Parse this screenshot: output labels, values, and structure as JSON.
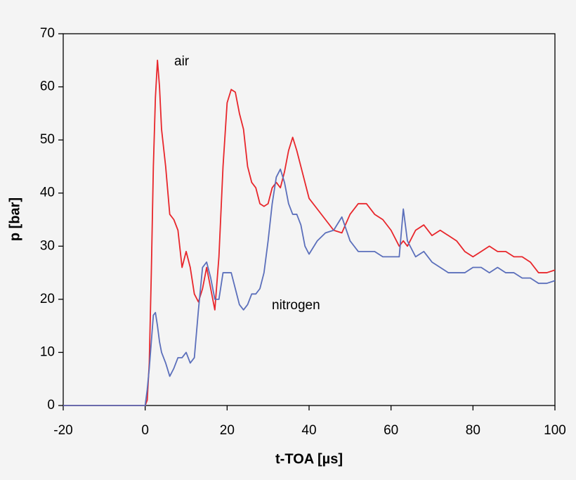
{
  "chart_data": {
    "type": "line",
    "x_label": "t-TOA [µs]",
    "y_label": "p [bar]",
    "annotations": [
      "air",
      "nitrogen"
    ],
    "x": [
      -20,
      -10,
      -1,
      0,
      0.5,
      1,
      1.5,
      2,
      2.5,
      3,
      3.5,
      4,
      5,
      6,
      7,
      8,
      9,
      10,
      11,
      12,
      13,
      14,
      15,
      16,
      17,
      18,
      19,
      20,
      21,
      22,
      23,
      24,
      25,
      26,
      27,
      28,
      29,
      30,
      31,
      32,
      33,
      34,
      35,
      36,
      37,
      38,
      39,
      40,
      42,
      44,
      46,
      48,
      50,
      52,
      54,
      56,
      58,
      60,
      62,
      63,
      64,
      66,
      68,
      70,
      72,
      74,
      76,
      78,
      80,
      82,
      84,
      86,
      88,
      90,
      92,
      94,
      96,
      98,
      100
    ],
    "series": [
      {
        "name": "air",
        "color": "#e8262b",
        "values": [
          0,
          0,
          0,
          0,
          1,
          8,
          25,
          45,
          58,
          65,
          60,
          52,
          45,
          36,
          35,
          33,
          26,
          29,
          26,
          21,
          19.5,
          22,
          26,
          22,
          18,
          28,
          45,
          57,
          59.5,
          59,
          55,
          52,
          45,
          42,
          41,
          38,
          37.5,
          38,
          41,
          42,
          41,
          44,
          48,
          50.5,
          48,
          45,
          42,
          39,
          37,
          35,
          33,
          32.5,
          36,
          38,
          38,
          36,
          35,
          33,
          30,
          31,
          30,
          33,
          34,
          32,
          33,
          32,
          31,
          29,
          28,
          29,
          30,
          29,
          29,
          28,
          28,
          27,
          25,
          25,
          25.5
        ]
      },
      {
        "name": "nitrogen",
        "color": "#5b6fbb",
        "values": [
          0,
          0,
          0,
          0,
          3,
          7,
          12,
          17,
          17.5,
          15,
          12,
          10,
          8,
          5.5,
          7,
          9,
          9,
          10,
          8,
          9,
          18,
          26,
          27,
          24,
          20,
          20,
          25,
          25,
          25,
          22,
          19,
          18,
          19,
          21,
          21,
          22,
          25,
          31,
          38,
          43,
          44.5,
          42,
          38,
          36,
          36,
          34,
          30,
          28.5,
          31,
          32.5,
          33,
          35.5,
          31,
          29,
          29,
          29,
          28,
          28,
          28,
          37,
          31,
          28,
          29,
          27,
          26,
          25,
          25,
          25,
          26,
          26,
          25,
          26,
          25,
          25,
          24,
          24,
          23,
          23,
          23.5
        ]
      }
    ],
    "xlim": [
      -20,
      100
    ],
    "xticks": [
      -20,
      0,
      20,
      40,
      60,
      80,
      100
    ],
    "ylim": [
      0,
      70
    ],
    "yticks": [
      0,
      10,
      20,
      30,
      40,
      50,
      60,
      70
    ]
  }
}
